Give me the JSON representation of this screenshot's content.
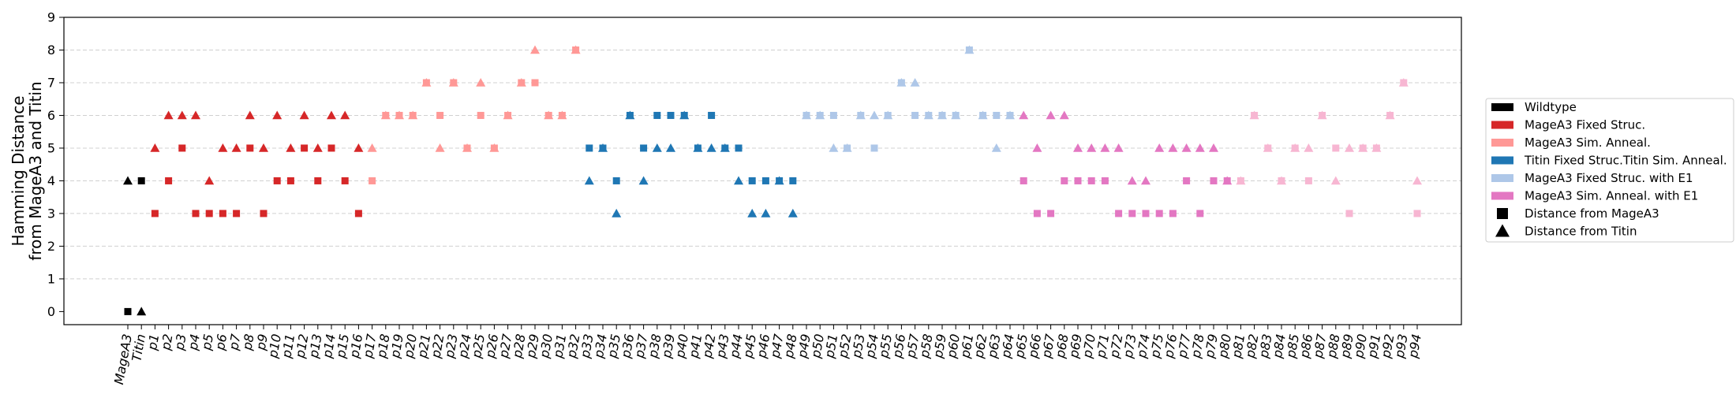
{
  "chart_data": {
    "type": "scatter",
    "categories": [
      "MageA3",
      "Titin",
      "p1",
      "p2",
      "p3",
      "p4",
      "p5",
      "p6",
      "p7",
      "p8",
      "p9",
      "p10",
      "p11",
      "p12",
      "p13",
      "p14",
      "p15",
      "p16",
      "p17",
      "p18",
      "p19",
      "p20",
      "p21",
      "p22",
      "p23",
      "p24",
      "p25",
      "p26",
      "p27",
      "p28",
      "p29",
      "p30",
      "p31",
      "p32",
      "p33",
      "p34",
      "p35",
      "p36",
      "p37",
      "p38",
      "p39",
      "p40",
      "p41",
      "p42",
      "p43",
      "p44",
      "p45",
      "p46",
      "p47",
      "p48",
      "p49",
      "p50",
      "p51",
      "p52",
      "p53",
      "p54",
      "p55",
      "p56",
      "p57",
      "p58",
      "p59",
      "p60",
      "p61",
      "p62",
      "p63",
      "p64",
      "p65",
      "p66",
      "p67",
      "p68",
      "p69",
      "p70",
      "p71",
      "p72",
      "p73",
      "p74",
      "p75",
      "p76",
      "p77",
      "p78",
      "p79",
      "p80",
      "p81",
      "p82",
      "p83",
      "p84",
      "p85",
      "p86",
      "p87",
      "p88",
      "p89",
      "p90",
      "p91",
      "p92",
      "p93",
      "p94"
    ],
    "ylabel_line1": "Hamming Distance",
    "ylabel_line2": "from MageA3 and Titin",
    "ylim": [
      -0.4,
      9
    ],
    "yticks": [
      "0",
      "1",
      "2",
      "3",
      "4",
      "5",
      "6",
      "7",
      "8",
      "9"
    ],
    "grid": "horizontal dashed",
    "legend_position": "right",
    "groups": [
      {
        "name": "Wildtype",
        "color": "#000000",
        "start": 0,
        "end": 1
      },
      {
        "name": "MageA3 Fixed Struc.",
        "color": "#d62728",
        "start": 2,
        "end": 17
      },
      {
        "name": "MageA3 Sim. Anneal.",
        "color": "#ff9896",
        "start": 18,
        "end": 33
      },
      {
        "name": "Titin Fixed Struc.Titin Sim. Anneal.",
        "color": "#1f77b4",
        "start": 34,
        "end": 49
      },
      {
        "name": "MageA3 Fixed Struc. with E1",
        "color": "#aec7e8",
        "start": 50,
        "end": 65
      },
      {
        "name": "MageA3 Sim. Anneal. with E1",
        "color": "#e377c2",
        "start": 66,
        "end": 81
      },
      {
        "name": "",
        "color": "#f7b6d2",
        "start": 82,
        "end": 95
      }
    ],
    "marker_legend": [
      {
        "name": "Distance from MageA3",
        "marker": "square"
      },
      {
        "name": "Distance from Titin",
        "marker": "triangle"
      }
    ],
    "distance_from_MageA3": [
      0,
      4,
      3,
      4,
      5,
      3,
      3,
      3,
      3,
      5,
      3,
      4,
      4,
      5,
      4,
      5,
      4,
      3,
      4,
      6,
      6,
      6,
      7,
      6,
      7,
      5,
      6,
      5,
      6,
      7,
      7,
      6,
      6,
      8,
      5,
      5,
      4,
      6,
      5,
      6,
      6,
      6,
      5,
      6,
      5,
      5,
      4,
      4,
      4,
      4,
      6,
      6,
      6,
      5,
      6,
      5,
      6,
      7,
      6,
      6,
      6,
      6,
      8,
      6,
      6,
      6,
      4,
      3,
      3,
      4,
      4,
      4,
      4,
      3,
      3,
      3,
      3,
      3,
      4,
      3,
      4,
      4,
      4,
      6,
      5,
      4,
      5,
      4,
      6,
      5,
      3,
      5,
      5,
      6,
      7,
      3
    ],
    "distance_from_Titin": [
      4,
      0,
      5,
      6,
      6,
      6,
      4,
      5,
      5,
      6,
      5,
      6,
      5,
      6,
      5,
      6,
      6,
      5,
      5,
      6,
      6,
      6,
      7,
      5,
      7,
      5,
      7,
      5,
      6,
      7,
      8,
      6,
      6,
      8,
      4,
      5,
      3,
      6,
      4,
      5,
      5,
      6,
      5,
      5,
      5,
      4,
      3,
      3,
      4,
      3,
      6,
      6,
      5,
      5,
      6,
      6,
      6,
      7,
      7,
      6,
      6,
      6,
      8,
      6,
      5,
      6,
      6,
      5,
      6,
      6,
      5,
      5,
      5,
      5,
      4,
      4,
      5,
      5,
      5,
      5,
      5,
      4,
      4,
      6,
      5,
      4,
      5,
      5,
      6,
      4,
      5,
      5,
      5,
      6,
      7,
      4
    ]
  }
}
